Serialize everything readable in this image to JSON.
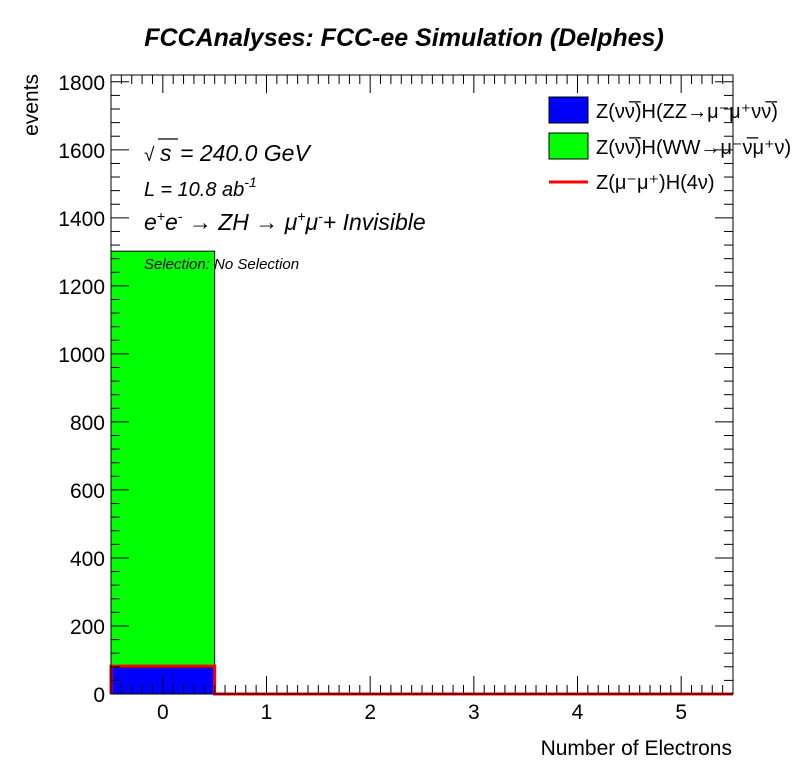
{
  "chart_data": {
    "type": "bar",
    "title": "FCCAnalyses: FCC-ee Simulation (Delphes)",
    "xlabel": "Number of Electrons",
    "ylabel": "events",
    "xlim": [
      -0.5,
      5.5
    ],
    "ylim": [
      0,
      1820
    ],
    "x_ticks": [
      "0",
      "1",
      "2",
      "3",
      "4",
      "5"
    ],
    "y_ticks": [
      "0",
      "200",
      "400",
      "600",
      "800",
      "1000",
      "1200",
      "1400",
      "1600",
      "1800"
    ],
    "categories": [
      "0",
      "1",
      "2",
      "3",
      "4",
      "5"
    ],
    "series": [
      {
        "name": "Z(νν̅)H(ZZ→μ⁻μ⁺νν̅)",
        "style": "stacked-fill",
        "color": "#0000ff",
        "values": [
          78,
          0,
          0,
          0,
          0,
          0
        ]
      },
      {
        "name": "Z(νν̅)H(WW→μ⁻ν̅μ⁺ν)",
        "style": "stacked-fill",
        "color": "#00ff00",
        "values": [
          1224,
          0,
          0,
          0,
          0,
          0
        ]
      },
      {
        "name": "Z(μ⁻μ⁺)H(4ν)",
        "style": "line",
        "color": "#ff0000",
        "values": [
          82,
          0,
          0,
          0,
          0,
          0
        ]
      }
    ],
    "annotations": {
      "sqrt_s": "= 240.0 GeV",
      "lumi_prefix": "L = 10.8 ab",
      "lumi_exp": "-1",
      "process_invisible": "+ Invisible",
      "selection": "Selection: No Selection"
    },
    "legend_position": "top-right",
    "grid": false
  }
}
